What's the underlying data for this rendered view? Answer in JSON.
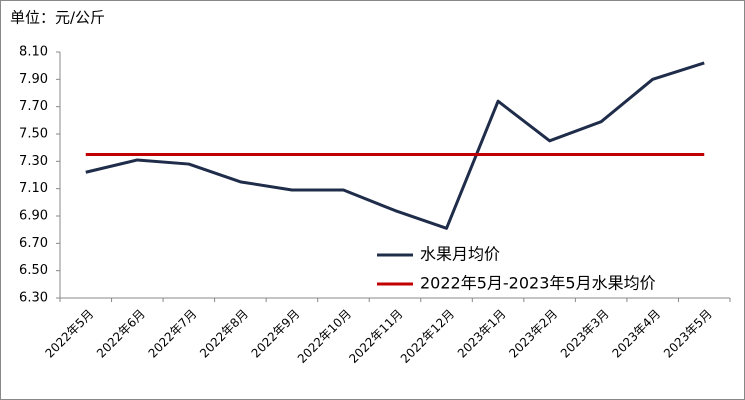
{
  "chart_data": {
    "type": "line",
    "unit_label": "单位：元/公斤",
    "categories": [
      "2022年5月",
      "2022年6月",
      "2022年7月",
      "2022年8月",
      "2022年9月",
      "2022年10月",
      "2022年11月",
      "2022年12月",
      "2023年1月",
      "2023年2月",
      "2023年3月",
      "2023年4月",
      "2023年5月"
    ],
    "series": [
      {
        "name": "水果月均价",
        "color": "#1f2d4a",
        "values": [
          7.22,
          7.31,
          7.28,
          7.15,
          7.09,
          7.09,
          6.94,
          6.81,
          7.74,
          7.45,
          7.59,
          7.9,
          8.02
        ]
      },
      {
        "name": "2022年5月-2023年5月水果均价",
        "color": "#c00000",
        "values": [
          7.35,
          7.35,
          7.35,
          7.35,
          7.35,
          7.35,
          7.35,
          7.35,
          7.35,
          7.35,
          7.35,
          7.35,
          7.35
        ]
      }
    ],
    "ylim": [
      6.3,
      8.1
    ],
    "yticks": [
      {
        "value": 6.3,
        "label": "6.30"
      },
      {
        "value": 6.5,
        "label": "6.50"
      },
      {
        "value": 6.7,
        "label": "6.70"
      },
      {
        "value": 6.9,
        "label": "6.90"
      },
      {
        "value": 7.1,
        "label": "7.10"
      },
      {
        "value": 7.3,
        "label": "7.30"
      },
      {
        "value": 7.5,
        "label": "7.50"
      },
      {
        "value": 7.7,
        "label": "7.70"
      },
      {
        "value": 7.9,
        "label": "7.90"
      },
      {
        "value": 8.1,
        "label": "8.10"
      }
    ],
    "grid": false
  }
}
